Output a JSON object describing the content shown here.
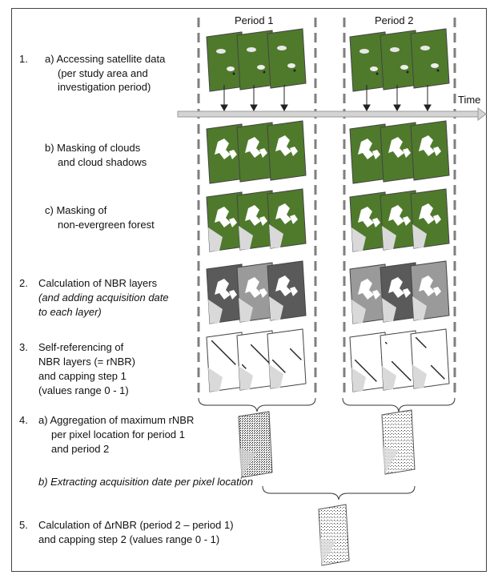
{
  "periods": [
    "Period 1",
    "Period 2"
  ],
  "time_label": "Time",
  "steps": [
    {
      "number": "1.",
      "lines": [
        "a) Accessing satellite data",
        "(per study area and",
        "investigation period)"
      ]
    },
    {
      "number": "",
      "lines": [
        "b) Masking of clouds",
        "and cloud shadows"
      ]
    },
    {
      "number": "",
      "lines": [
        "c) Masking of",
        "non-evergreen forest"
      ]
    },
    {
      "number": "2.",
      "lines": [
        "Calculation of NBR layers",
        "(and adding acquisition date",
        "to each layer)"
      ]
    },
    {
      "number": "3.",
      "lines": [
        "Self-referencing of",
        "NBR layers (= rNBR)",
        "and capping step 1",
        "(values range 0 - 1)"
      ]
    },
    {
      "number": "4.",
      "lines": [
        "a) Aggregation of maximum rNBR",
        "per pixel location for period 1",
        "and period 2"
      ]
    },
    {
      "number": "",
      "lines": [
        "b) Extracting acquisition date per pixel location"
      ]
    },
    {
      "number": "5.",
      "lines": [
        "Calculation of ΔrNBR (period 2 – period 1)",
        "and capping  step 2 (values range 0 - 1)"
      ]
    }
  ],
  "colors": {
    "forest": "#4f7a2c",
    "forest_light": "#6e9a3e",
    "nbr_dark": "#5a5a5a",
    "nbr_light": "#9a9a9a",
    "masked": "#d9d9d9",
    "dash_line": "#7f7f7f",
    "arrow": "#bfbfbf"
  }
}
